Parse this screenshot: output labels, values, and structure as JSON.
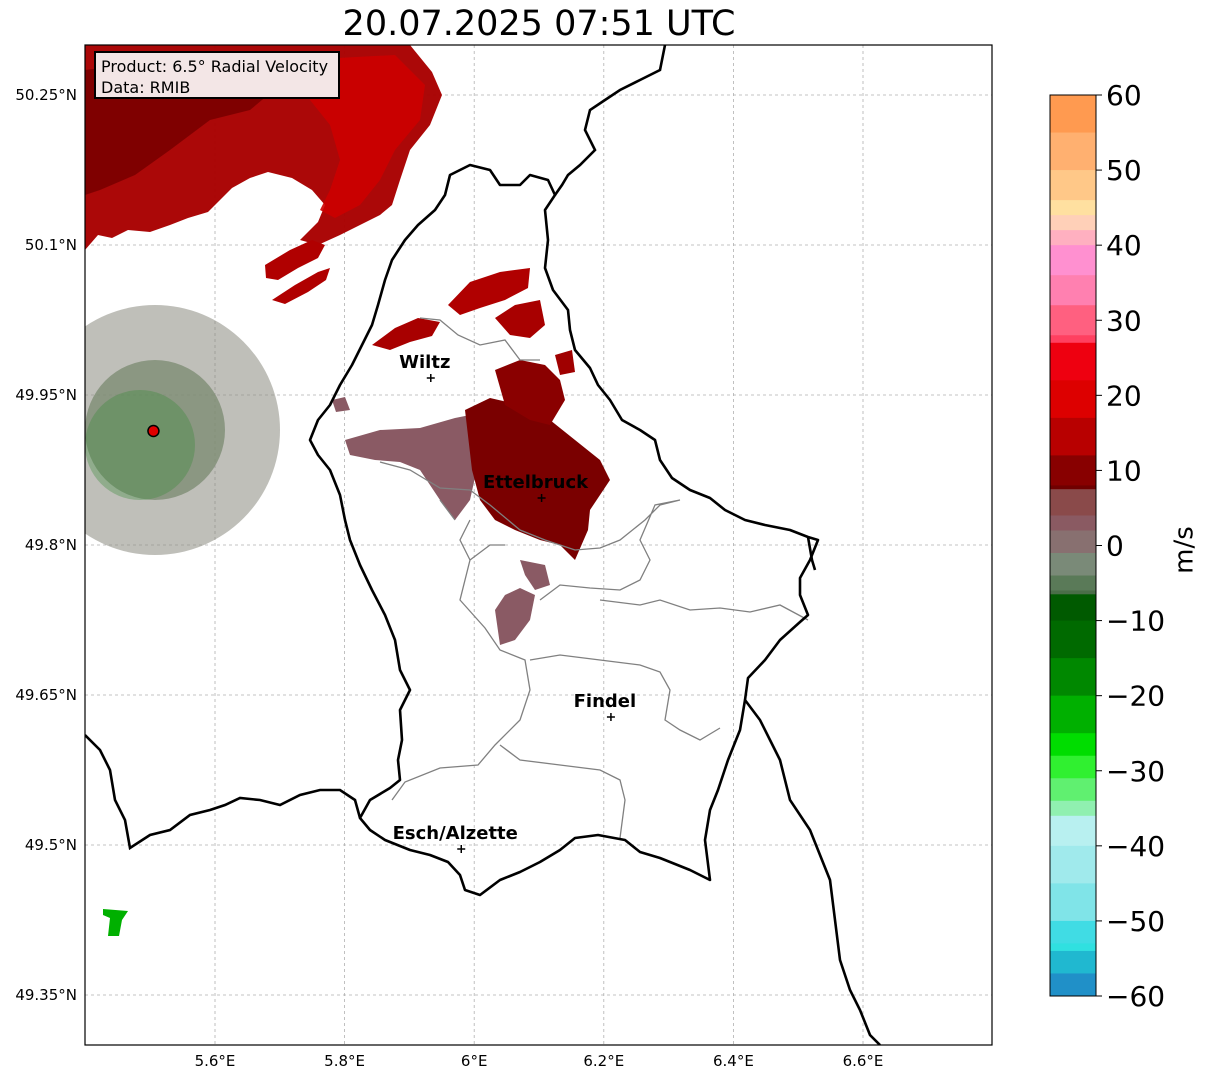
{
  "title": "20.07.2025 07:51 UTC",
  "info": {
    "product": "Product: 6.5° Radial Velocity",
    "data": "Data: RMIB"
  },
  "lat_labels": [
    "50.25°N",
    "50.1°N",
    "49.95°N",
    "49.8°N",
    "49.65°N",
    "49.5°N",
    "49.35°N"
  ],
  "lon_labels": [
    "5.6°E",
    "5.8°E",
    "6°E",
    "6.2°E",
    "6.4°E",
    "6.6°E"
  ],
  "cities": [
    {
      "name": "Wiltz",
      "lon": 5.933,
      "lat": 49.967
    },
    {
      "name": "Ettelbruck",
      "lon": 6.104,
      "lat": 49.847
    },
    {
      "name": "Findel",
      "lon": 6.211,
      "lat": 49.628
    },
    {
      "name": "Esch/Alzette",
      "lon": 5.98,
      "lat": 49.496
    }
  ],
  "colorbar": {
    "unit": "m/s",
    "ticks": [
      "60",
      "50",
      "40",
      "30",
      "20",
      "10",
      "0",
      "−10",
      "−20",
      "−30",
      "−40",
      "−50",
      "−60"
    ],
    "range": [
      -60,
      60
    ],
    "stops": [
      {
        "v": 60,
        "c": "#ff9a50"
      },
      {
        "v": 55,
        "c": "#ffb070"
      },
      {
        "v": 50,
        "c": "#ffc888"
      },
      {
        "v": 46,
        "c": "#ffe0a0"
      },
      {
        "v": 44,
        "c": "#ffd0b8"
      },
      {
        "v": 42,
        "c": "#ffb0c0"
      },
      {
        "v": 40,
        "c": "#ff90d0"
      },
      {
        "v": 36,
        "c": "#ff80b0"
      },
      {
        "v": 32,
        "c": "#ff6080"
      },
      {
        "v": 28,
        "c": "#ff4060"
      },
      {
        "v": 27,
        "c": "#ee0010"
      },
      {
        "v": 22,
        "c": "#dd0000"
      },
      {
        "v": 17,
        "c": "#b80000"
      },
      {
        "v": 12,
        "c": "#880000"
      },
      {
        "v": 8,
        "c": "#700000"
      },
      {
        "v": 7.5,
        "c": "#8a4a4a"
      },
      {
        "v": 4,
        "c": "#8a5a62"
      },
      {
        "v": 2,
        "c": "#887070"
      },
      {
        "v": -1,
        "c": "#7a8a78"
      },
      {
        "v": -4,
        "c": "#5a7a58"
      },
      {
        "v": -6,
        "c": "#4a6e48"
      },
      {
        "v": -6.5,
        "c": "#005a00"
      },
      {
        "v": -10,
        "c": "#006a00"
      },
      {
        "v": -15,
        "c": "#008800"
      },
      {
        "v": -20,
        "c": "#00b000"
      },
      {
        "v": -25,
        "c": "#00dd00"
      },
      {
        "v": -28,
        "c": "#30f030"
      },
      {
        "v": -31,
        "c": "#60f070"
      },
      {
        "v": -34,
        "c": "#90f0b0"
      },
      {
        "v": -36,
        "c": "#b8f0f0"
      },
      {
        "v": -40,
        "c": "#a0eaec"
      },
      {
        "v": -45,
        "c": "#80e4e8"
      },
      {
        "v": -50,
        "c": "#40dce4"
      },
      {
        "v": -53,
        "c": "#30e0e0"
      },
      {
        "v": -54,
        "c": "#20b8d0"
      },
      {
        "v": -57,
        "c": "#2090c8"
      },
      {
        "v": -60,
        "c": "#1f78c0"
      }
    ]
  },
  "radar_site": {
    "lon": 5.505,
    "lat": 49.914
  },
  "colors": {
    "border": "#000000",
    "canton": "#808080",
    "grid": "#b0b0b0",
    "site_marker": "#e00000",
    "storm_red": "#a80000",
    "storm_dark": "#7a0000",
    "storm_mauve": "#8a5a64",
    "clutter_gray": "#8a8a80",
    "clutter_green": "#00a000"
  }
}
